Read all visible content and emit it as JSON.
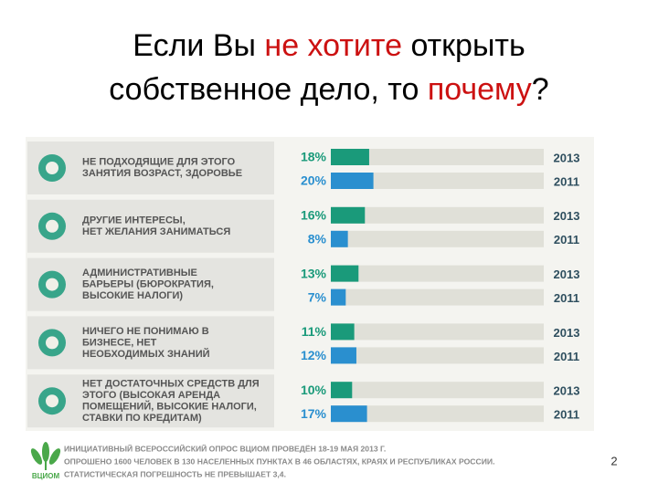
{
  "chart_data": {
    "type": "bar",
    "orientation": "horizontal",
    "title": {
      "lines": [
        [
          {
            "text": "Если Вы ",
            "color": "#000000"
          },
          {
            "text": "не хотите",
            "color": "#cc1111"
          },
          {
            "text": " открыть",
            "color": "#000000"
          }
        ],
        [
          {
            "text": "собственное дело, то ",
            "color": "#000000"
          },
          {
            "text": "почему",
            "color": "#cc1111"
          },
          {
            "text": "?",
            "color": "#000000"
          }
        ]
      ]
    },
    "categories": [
      [
        "НЕ ПОДХОДЯЩИЕ ДЛЯ ЭТОГО",
        "ЗАНЯТИЯ ВОЗРАСТ, ЗДОРОВЬЕ"
      ],
      [
        "ДРУГИЕ ИНТЕРЕСЫ,",
        "НЕТ ЖЕЛАНИЯ ЗАНИМАТЬСЯ"
      ],
      [
        "АДМИНИСТРАТИВНЫЕ",
        "БАРЬЕРЫ (БЮРОКРАТИЯ,",
        "ВЫСОКИЕ НАЛОГИ)"
      ],
      [
        "НИЧЕГО НЕ ПОНИМАЮ В",
        "БИЗНЕСЕ, НЕТ",
        "НЕОБХОДИМЫХ ЗНАНИЙ"
      ],
      [
        "НЕТ ДОСТАТОЧНЫХ СРЕДСТВ ДЛЯ",
        "ЭТОГО (ВЫСОКАЯ АРЕНДА",
        "ПОМЕЩЕНИЙ, ВЫСОКИЕ НАЛОГИ,",
        "СТАВКИ ПО КРЕДИТАМ)"
      ]
    ],
    "series": [
      {
        "name": "2013",
        "color": "#1a9a7a",
        "values": [
          18,
          16,
          13,
          11,
          10
        ],
        "value_labels": [
          "18%",
          "16%",
          "13%",
          "11%",
          "10%"
        ]
      },
      {
        "name": "2011",
        "color": "#2a8fcf",
        "values": [
          20,
          8,
          7,
          12,
          17
        ],
        "value_labels": [
          "20%",
          "8%",
          "7%",
          "12%",
          "17%"
        ]
      }
    ],
    "xlim": [
      0,
      100
    ]
  },
  "footer": {
    "logo": "ВЦИОМ",
    "lines": [
      "ИНИЦИАТИВНЫЙ ВСЕРОССИЙСКИЙ ОПРОС ВЦИОМ ПРОВЕДЁН 18-19 МАЯ 2013 Г.",
      "ОПРОШЕНО 1600 ЧЕЛОВЕК В 130 НАСЕЛЕННЫХ ПУНКТАХ В 46 ОБЛАСТЯХ, КРАЯХ И РЕСПУБЛИКАХ РОССИИ.",
      "СТАТИСТИЧЕСКАЯ ПОГРЕШНОСТЬ НЕ ПРЕВЫШАЕТ 3,4."
    ]
  },
  "page_number": "2"
}
